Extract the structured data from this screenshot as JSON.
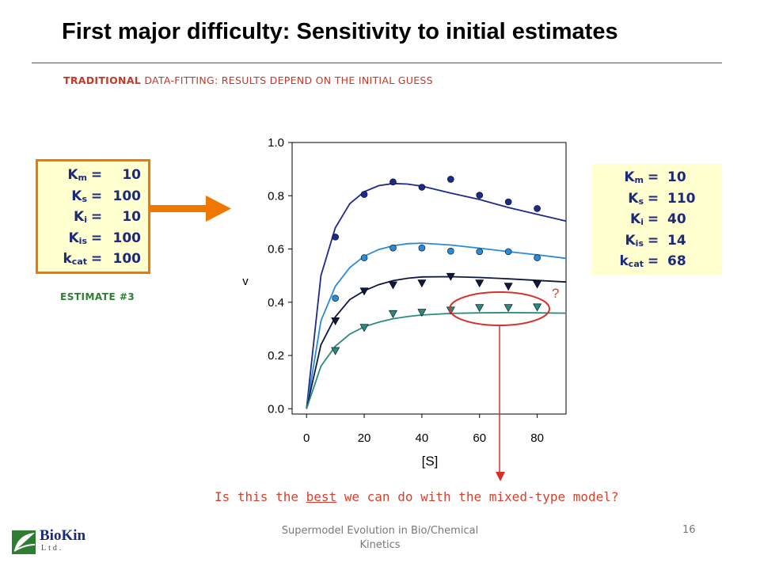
{
  "title": "First major difficulty: Sensitivity to initial estimates",
  "subtitle": {
    "bold": "TRADITIONAL",
    "rest": " DATA-FITTING: RESULTS DEPEND ON THE INITIAL GUESS"
  },
  "estimate": {
    "label": "ESTIMATE #3",
    "params": [
      {
        "name": "K",
        "sub": "m",
        "eq": "=",
        "value": "10"
      },
      {
        "name": "K",
        "sub": "s",
        "eq": "=",
        "value": "100"
      },
      {
        "name": "K",
        "sub": "i",
        "eq": "=",
        "value": "10"
      },
      {
        "name": "K",
        "sub": "is",
        "eq": "=",
        "value": "100"
      },
      {
        "name": "k",
        "sub": "cat",
        "eq": "=",
        "value": "100"
      }
    ]
  },
  "result": {
    "params": [
      {
        "name": "K",
        "sub": "m",
        "eq": "=",
        "value": "10"
      },
      {
        "name": "K",
        "sub": "s",
        "eq": "=",
        "value": "110"
      },
      {
        "name": "K",
        "sub": "i",
        "eq": "=",
        "value": "40"
      },
      {
        "name": "K",
        "sub": "is",
        "eq": "=",
        "value": "14"
      },
      {
        "name": "k",
        "sub": "cat",
        "eq": "=",
        "value": "68"
      }
    ]
  },
  "question": {
    "pre": "Is this the ",
    "emph": "best",
    "post": " we can do with the mixed-type model?"
  },
  "footer": {
    "line1": "Supermodel Evolution in Bio/Chemical",
    "line2": "Kinetics",
    "page": "16"
  },
  "logo": {
    "name": "BioKin",
    "sub": "Ltd."
  },
  "colors": {
    "arrow": "#f07800",
    "box_fill": "#ffffd0",
    "ellipse": "#d9302b",
    "param_text": "#1c2a7a"
  },
  "chart_data": {
    "type": "scatter",
    "xlabel": "[S]",
    "ylabel": "v",
    "xlim": [
      -5,
      90
    ],
    "ylim": [
      -0.02,
      1.0
    ],
    "xticks": [
      0,
      20,
      40,
      60,
      80
    ],
    "yticks": [
      "0.0",
      "0.2",
      "0.4",
      "0.6",
      "0.8",
      "1.0"
    ],
    "annotation": "?",
    "series": [
      {
        "marker": "circle",
        "color": "#1c2a8a",
        "points": [
          [
            10,
            0.645
          ],
          [
            20,
            0.805
          ],
          [
            30,
            0.852
          ],
          [
            40,
            0.832
          ],
          [
            50,
            0.862
          ],
          [
            60,
            0.802
          ],
          [
            70,
            0.777
          ],
          [
            80,
            0.752
          ]
        ],
        "curve": [
          [
            0,
            0
          ],
          [
            5,
            0.5
          ],
          [
            10,
            0.68
          ],
          [
            15,
            0.77
          ],
          [
            20,
            0.815
          ],
          [
            25,
            0.838
          ],
          [
            30,
            0.846
          ],
          [
            35,
            0.844
          ],
          [
            40,
            0.836
          ],
          [
            50,
            0.81
          ],
          [
            60,
            0.786
          ],
          [
            70,
            0.756
          ],
          [
            80,
            0.73
          ],
          [
            90,
            0.705
          ]
        ]
      },
      {
        "marker": "circle",
        "color": "#2a8ad8",
        "points": [
          [
            10,
            0.415
          ],
          [
            20,
            0.567
          ],
          [
            30,
            0.604
          ],
          [
            40,
            0.604
          ],
          [
            50,
            0.592
          ],
          [
            60,
            0.59
          ],
          [
            70,
            0.59
          ],
          [
            80,
            0.567
          ]
        ],
        "curve": [
          [
            0,
            0
          ],
          [
            5,
            0.33
          ],
          [
            10,
            0.46
          ],
          [
            15,
            0.53
          ],
          [
            20,
            0.573
          ],
          [
            25,
            0.598
          ],
          [
            30,
            0.612
          ],
          [
            35,
            0.62
          ],
          [
            40,
            0.622
          ],
          [
            50,
            0.615
          ],
          [
            60,
            0.603
          ],
          [
            70,
            0.59
          ],
          [
            80,
            0.578
          ],
          [
            90,
            0.565
          ]
        ]
      },
      {
        "marker": "triangle",
        "color": "#101840",
        "points": [
          [
            10,
            0.33
          ],
          [
            20,
            0.442
          ],
          [
            30,
            0.465
          ],
          [
            40,
            0.472
          ],
          [
            50,
            0.497
          ],
          [
            60,
            0.472
          ],
          [
            70,
            0.46
          ],
          [
            80,
            0.468
          ]
        ],
        "curve": [
          [
            0,
            0
          ],
          [
            5,
            0.24
          ],
          [
            10,
            0.345
          ],
          [
            15,
            0.41
          ],
          [
            20,
            0.443
          ],
          [
            25,
            0.466
          ],
          [
            30,
            0.481
          ],
          [
            35,
            0.49
          ],
          [
            40,
            0.495
          ],
          [
            50,
            0.496
          ],
          [
            60,
            0.493
          ],
          [
            70,
            0.488
          ],
          [
            80,
            0.482
          ],
          [
            90,
            0.476
          ]
        ]
      },
      {
        "marker": "triangle",
        "color": "#2a8a80",
        "points": [
          [
            10,
            0.218
          ],
          [
            20,
            0.305
          ],
          [
            30,
            0.357
          ],
          [
            40,
            0.362
          ],
          [
            50,
            0.37
          ],
          [
            60,
            0.38
          ],
          [
            70,
            0.38
          ],
          [
            80,
            0.382
          ]
        ],
        "curve": [
          [
            0,
            0
          ],
          [
            5,
            0.16
          ],
          [
            10,
            0.235
          ],
          [
            15,
            0.28
          ],
          [
            20,
            0.308
          ],
          [
            25,
            0.325
          ],
          [
            30,
            0.338
          ],
          [
            35,
            0.346
          ],
          [
            40,
            0.352
          ],
          [
            50,
            0.358
          ],
          [
            60,
            0.36
          ],
          [
            70,
            0.361
          ],
          [
            80,
            0.36
          ],
          [
            90,
            0.359
          ]
        ]
      }
    ]
  }
}
